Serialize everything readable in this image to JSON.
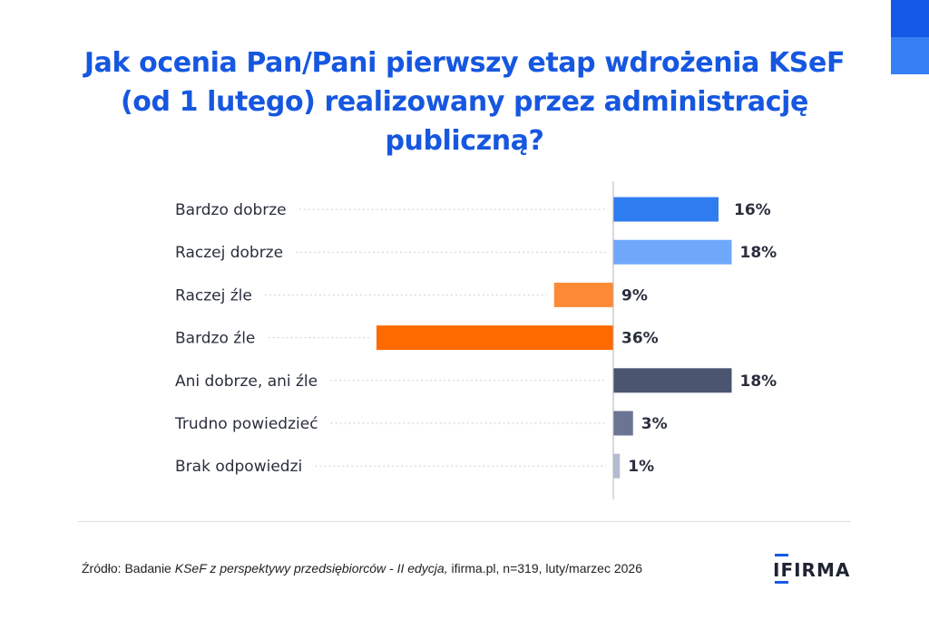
{
  "title_lines": [
    "Jak ocenia Pan/Pani pierwszy etap wdrożenia KSeF",
    "(od 1 lutego) realizowany przez administrację",
    "publiczną?"
  ],
  "chart_data": {
    "type": "bar",
    "orientation": "horizontal",
    "title": "Jak ocenia Pan/Pani pierwszy etap wdrożenia KSeF (od 1 lutego) realizowany przez administrację publiczną?",
    "categories": [
      "Bardzo dobrze",
      "Raczej dobrze",
      "Raczej źle",
      "Bardzo źle",
      "Ani dobrze, ani źle",
      "Trudno powiedzieć",
      "Brak odpowiedzi"
    ],
    "values": [
      16,
      18,
      9,
      36,
      18,
      3,
      1
    ],
    "direction": [
      "positive",
      "positive",
      "negative",
      "negative",
      "neutral",
      "neutral",
      "neutral"
    ],
    "colors": [
      "#2f7cf0",
      "#6fa8fb",
      "#ff8a35",
      "#ff6a00",
      "#4a5570",
      "#6a7593",
      "#b3bbd0"
    ],
    "value_labels": [
      "16%",
      "18%",
      "9%",
      "36%",
      "18%",
      "3%",
      "1%"
    ],
    "unit": "%",
    "xlabel": "",
    "ylabel": ""
  },
  "source": {
    "prefix": "Źródło: Badanie ",
    "study": "KSeF z perspektywy przedsiębiorców - II edycja,",
    "suffix": " ifirma.pl, n=319, luty/marzec 2026"
  },
  "logo": {
    "text": "IFIRMA",
    "accent": "#1459e8"
  },
  "colors": {
    "title": "#1657e0",
    "corner_dark": "#1459e8",
    "corner_light": "#3580f5"
  }
}
